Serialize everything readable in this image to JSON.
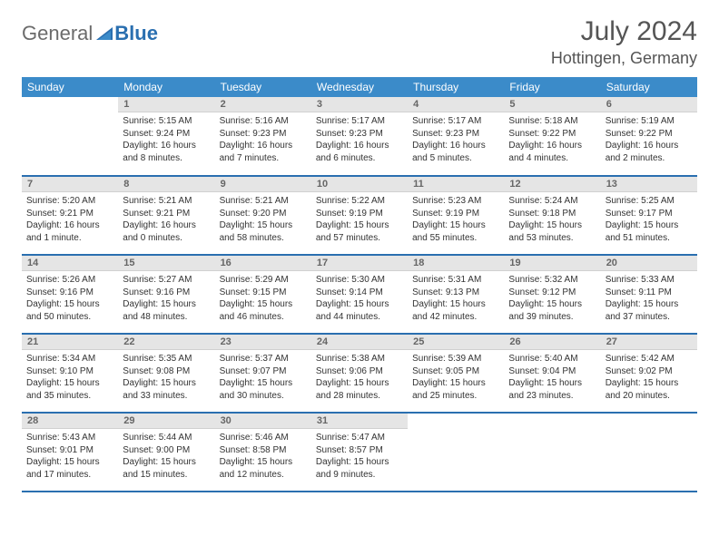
{
  "logo": {
    "text1": "General",
    "text2": "Blue"
  },
  "title": "July 2024",
  "location": "Hottingen, Germany",
  "colors": {
    "header_bg": "#3b8bc9",
    "header_text": "#ffffff",
    "daynum_bg": "#e5e5e5",
    "daynum_text": "#666666",
    "border": "#2a6fb0",
    "body_text": "#333333"
  },
  "weekdays": [
    "Sunday",
    "Monday",
    "Tuesday",
    "Wednesday",
    "Thursday",
    "Friday",
    "Saturday"
  ],
  "weeks": [
    [
      null,
      {
        "n": "1",
        "sr": "5:15 AM",
        "ss": "9:24 PM",
        "dl": "16 hours and 8 minutes."
      },
      {
        "n": "2",
        "sr": "5:16 AM",
        "ss": "9:23 PM",
        "dl": "16 hours and 7 minutes."
      },
      {
        "n": "3",
        "sr": "5:17 AM",
        "ss": "9:23 PM",
        "dl": "16 hours and 6 minutes."
      },
      {
        "n": "4",
        "sr": "5:17 AM",
        "ss": "9:23 PM",
        "dl": "16 hours and 5 minutes."
      },
      {
        "n": "5",
        "sr": "5:18 AM",
        "ss": "9:22 PM",
        "dl": "16 hours and 4 minutes."
      },
      {
        "n": "6",
        "sr": "5:19 AM",
        "ss": "9:22 PM",
        "dl": "16 hours and 2 minutes."
      }
    ],
    [
      {
        "n": "7",
        "sr": "5:20 AM",
        "ss": "9:21 PM",
        "dl": "16 hours and 1 minute."
      },
      {
        "n": "8",
        "sr": "5:21 AM",
        "ss": "9:21 PM",
        "dl": "16 hours and 0 minutes."
      },
      {
        "n": "9",
        "sr": "5:21 AM",
        "ss": "9:20 PM",
        "dl": "15 hours and 58 minutes."
      },
      {
        "n": "10",
        "sr": "5:22 AM",
        "ss": "9:19 PM",
        "dl": "15 hours and 57 minutes."
      },
      {
        "n": "11",
        "sr": "5:23 AM",
        "ss": "9:19 PM",
        "dl": "15 hours and 55 minutes."
      },
      {
        "n": "12",
        "sr": "5:24 AM",
        "ss": "9:18 PM",
        "dl": "15 hours and 53 minutes."
      },
      {
        "n": "13",
        "sr": "5:25 AM",
        "ss": "9:17 PM",
        "dl": "15 hours and 51 minutes."
      }
    ],
    [
      {
        "n": "14",
        "sr": "5:26 AM",
        "ss": "9:16 PM",
        "dl": "15 hours and 50 minutes."
      },
      {
        "n": "15",
        "sr": "5:27 AM",
        "ss": "9:16 PM",
        "dl": "15 hours and 48 minutes."
      },
      {
        "n": "16",
        "sr": "5:29 AM",
        "ss": "9:15 PM",
        "dl": "15 hours and 46 minutes."
      },
      {
        "n": "17",
        "sr": "5:30 AM",
        "ss": "9:14 PM",
        "dl": "15 hours and 44 minutes."
      },
      {
        "n": "18",
        "sr": "5:31 AM",
        "ss": "9:13 PM",
        "dl": "15 hours and 42 minutes."
      },
      {
        "n": "19",
        "sr": "5:32 AM",
        "ss": "9:12 PM",
        "dl": "15 hours and 39 minutes."
      },
      {
        "n": "20",
        "sr": "5:33 AM",
        "ss": "9:11 PM",
        "dl": "15 hours and 37 minutes."
      }
    ],
    [
      {
        "n": "21",
        "sr": "5:34 AM",
        "ss": "9:10 PM",
        "dl": "15 hours and 35 minutes."
      },
      {
        "n": "22",
        "sr": "5:35 AM",
        "ss": "9:08 PM",
        "dl": "15 hours and 33 minutes."
      },
      {
        "n": "23",
        "sr": "5:37 AM",
        "ss": "9:07 PM",
        "dl": "15 hours and 30 minutes."
      },
      {
        "n": "24",
        "sr": "5:38 AM",
        "ss": "9:06 PM",
        "dl": "15 hours and 28 minutes."
      },
      {
        "n": "25",
        "sr": "5:39 AM",
        "ss": "9:05 PM",
        "dl": "15 hours and 25 minutes."
      },
      {
        "n": "26",
        "sr": "5:40 AM",
        "ss": "9:04 PM",
        "dl": "15 hours and 23 minutes."
      },
      {
        "n": "27",
        "sr": "5:42 AM",
        "ss": "9:02 PM",
        "dl": "15 hours and 20 minutes."
      }
    ],
    [
      {
        "n": "28",
        "sr": "5:43 AM",
        "ss": "9:01 PM",
        "dl": "15 hours and 17 minutes."
      },
      {
        "n": "29",
        "sr": "5:44 AM",
        "ss": "9:00 PM",
        "dl": "15 hours and 15 minutes."
      },
      {
        "n": "30",
        "sr": "5:46 AM",
        "ss": "8:58 PM",
        "dl": "15 hours and 12 minutes."
      },
      {
        "n": "31",
        "sr": "5:47 AM",
        "ss": "8:57 PM",
        "dl": "15 hours and 9 minutes."
      },
      null,
      null,
      null
    ]
  ],
  "labels": {
    "sunrise": "Sunrise:",
    "sunset": "Sunset:",
    "daylight": "Daylight:"
  }
}
